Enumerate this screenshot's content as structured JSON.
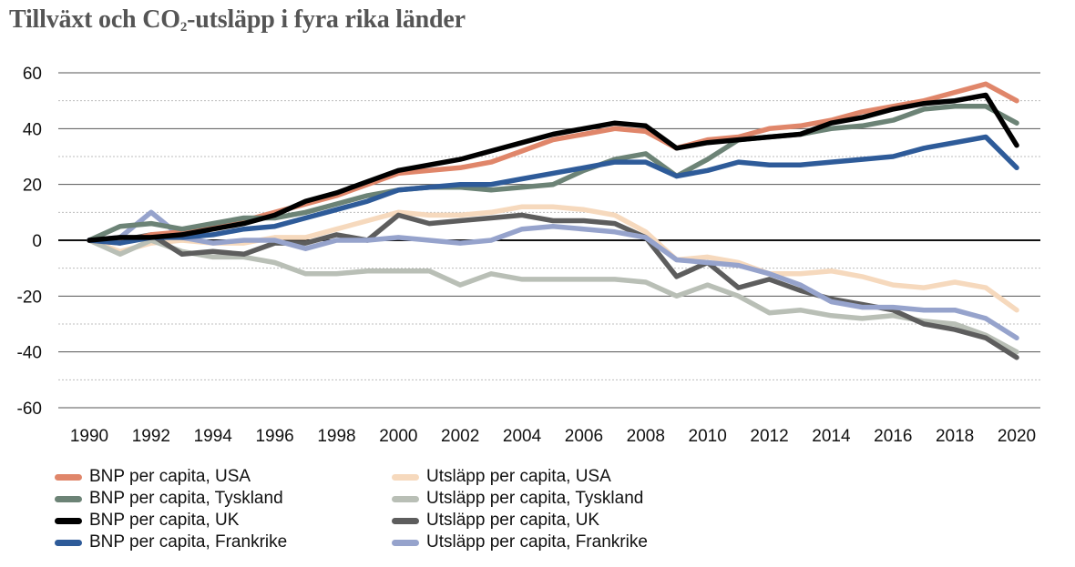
{
  "title_main": "Tillväxt och CO",
  "title_sub": "2",
  "title_rest": "-utsläpp i fyra rika länder",
  "chart_data": {
    "type": "line",
    "title": "Tillväxt och CO2-utsläpp i fyra rika länder",
    "xlabel": "",
    "ylabel": "",
    "ylim": [
      -60,
      60
    ],
    "xlim": [
      1990,
      2020
    ],
    "y_ticks": [
      "60",
      "40",
      "20",
      "0",
      "-20",
      "-40",
      "-60"
    ],
    "y_tick_values": [
      60,
      40,
      20,
      0,
      -20,
      -40,
      -60
    ],
    "x_ticks": [
      "1990",
      "1992",
      "1994",
      "1996",
      "1998",
      "2000",
      "2002",
      "2004",
      "2006",
      "2008",
      "2010",
      "2012",
      "2014",
      "2016",
      "2018",
      "2020"
    ],
    "x_tick_values": [
      1990,
      1992,
      1994,
      1996,
      1998,
      2000,
      2002,
      2004,
      2006,
      2008,
      2010,
      2012,
      2014,
      2016,
      2018,
      2020
    ],
    "grid": true,
    "legend_position": "bottom-left",
    "x": [
      1990,
      1991,
      1992,
      1993,
      1994,
      1995,
      1996,
      1997,
      1998,
      1999,
      2000,
      2001,
      2002,
      2003,
      2004,
      2005,
      2006,
      2007,
      2008,
      2009,
      2010,
      2011,
      2012,
      2013,
      2014,
      2015,
      2016,
      2017,
      2018,
      2019,
      2020
    ],
    "series": [
      {
        "name": "Utsläpp per capita, USA",
        "color": "#f6d9bd",
        "values": [
          0,
          -4,
          -1,
          0,
          -1,
          -1,
          1,
          1,
          4,
          7,
          10,
          9,
          9,
          10,
          12,
          12,
          11,
          9,
          3,
          -7,
          -6,
          -8,
          -12,
          -12,
          -11,
          -13,
          -16,
          -17,
          -15,
          -17,
          -25
        ]
      },
      {
        "name": "Utsläpp per capita, Tyskland",
        "color": "#b9bfb6",
        "values": [
          0,
          -5,
          0,
          -4,
          -6,
          -6,
          -8,
          -12,
          -12,
          -11,
          -11,
          -11,
          -16,
          -12,
          -14,
          -14,
          -14,
          -14,
          -15,
          -20,
          -16,
          -20,
          -26,
          -25,
          -27,
          -28,
          -27,
          -29,
          -30,
          -34,
          -40
        ]
      },
      {
        "name": "Utsläpp per capita, UK",
        "color": "#5d5d5d",
        "values": [
          0,
          0,
          2,
          -5,
          -4,
          -5,
          -1,
          -1,
          2,
          0,
          9,
          6,
          7,
          8,
          9,
          7,
          7,
          6,
          1,
          -13,
          -8,
          -17,
          -14,
          -18,
          -21,
          -23,
          -25,
          -30,
          -32,
          -35,
          -42
        ]
      },
      {
        "name": "Utsläpp per capita, Frankrike",
        "color": "#96a3cc",
        "values": [
          0,
          1,
          10,
          1,
          -1,
          0,
          0,
          -3,
          0,
          0,
          1,
          0,
          -1,
          0,
          4,
          5,
          4,
          3,
          1,
          -7,
          -8,
          -9,
          -12,
          -16,
          -22,
          -24,
          -24,
          -25,
          -25,
          -28,
          -35
        ]
      },
      {
        "name": "BNP per capita, USA",
        "color": "#e0866a",
        "values": [
          0,
          -1,
          2,
          3,
          5,
          7,
          10,
          13,
          16,
          20,
          24,
          25,
          26,
          28,
          32,
          36,
          38,
          40,
          39,
          33,
          36,
          37,
          40,
          41,
          43,
          46,
          48,
          50,
          53,
          56,
          50
        ]
      },
      {
        "name": "BNP per capita, Tyskland",
        "color": "#6c8376",
        "values": [
          0,
          5,
          6,
          4,
          6,
          8,
          8,
          10,
          13,
          16,
          18,
          19,
          19,
          18,
          19,
          20,
          25,
          29,
          31,
          23,
          29,
          36,
          37,
          38,
          40,
          41,
          43,
          47,
          48,
          48,
          42
        ]
      },
      {
        "name": "BNP per capita, Frankrike",
        "color": "#2e5b99",
        "values": [
          0,
          -1,
          1,
          1,
          2,
          4,
          5,
          8,
          11,
          14,
          18,
          19,
          20,
          20,
          22,
          24,
          26,
          28,
          28,
          23,
          25,
          28,
          27,
          27,
          28,
          29,
          30,
          33,
          35,
          37,
          26
        ]
      },
      {
        "name": "BNP per capita, UK",
        "color": "#000000",
        "values": [
          0,
          1,
          1,
          2,
          4,
          6,
          9,
          14,
          17,
          21,
          25,
          27,
          29,
          32,
          35,
          38,
          40,
          42,
          41,
          33,
          35,
          36,
          37,
          38,
          42,
          44,
          47,
          49,
          50,
          52,
          34
        ]
      }
    ]
  },
  "legend": [
    {
      "label": "BNP per capita, USA",
      "color": "#e0866a"
    },
    {
      "label": "BNP per capita, Tyskland",
      "color": "#6c8376"
    },
    {
      "label": "BNP per capita, UK",
      "color": "#000000"
    },
    {
      "label": "BNP per capita, Frankrike",
      "color": "#2e5b99"
    },
    {
      "label": "Utsläpp per capita, USA",
      "color": "#f6d9bd"
    },
    {
      "label": "Utsläpp per capita, Tyskland",
      "color": "#b9bfb6"
    },
    {
      "label": "Utsläpp per capita, UK",
      "color": "#5d5d5d"
    },
    {
      "label": "Utsläpp per capita, Frankrike",
      "color": "#96a3cc"
    }
  ]
}
